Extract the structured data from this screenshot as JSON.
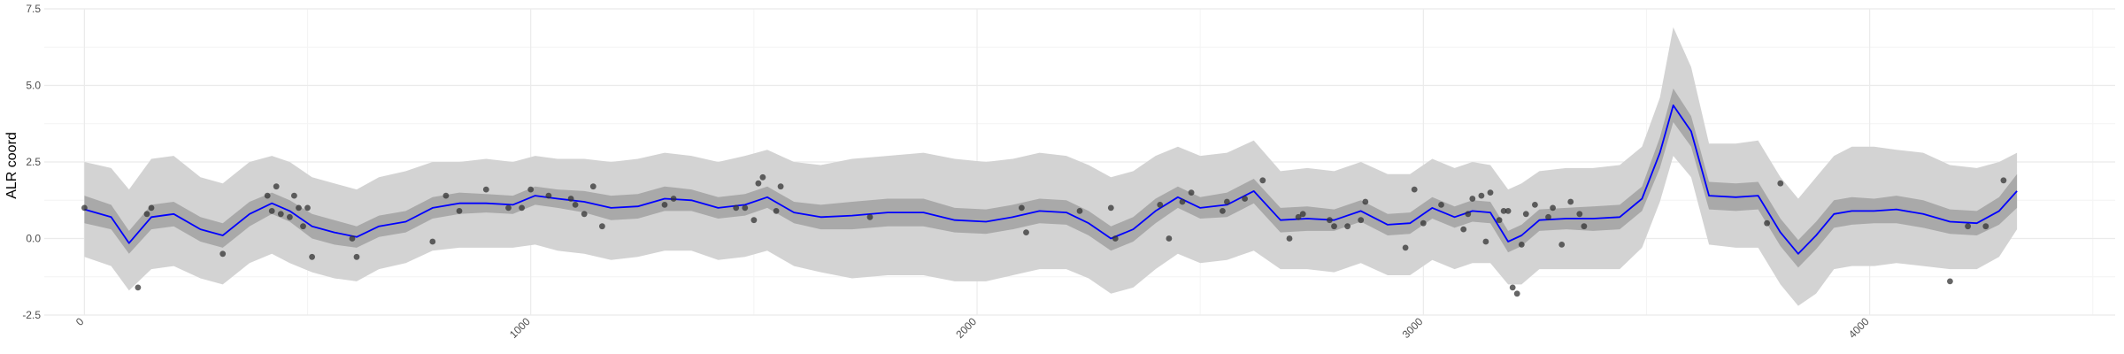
{
  "chart_data": {
    "type": "line",
    "title": "",
    "xlabel": "",
    "ylabel": "ALR coord",
    "xlim": [
      -90,
      4550
    ],
    "ylim": [
      -2.5,
      7.5
    ],
    "x_ticks": [
      0,
      1000,
      2000,
      3000,
      4000
    ],
    "x_tick_labels": [
      "0",
      "1000",
      "2000",
      "3000",
      "4000"
    ],
    "y_ticks": [
      -2.5,
      0,
      2.5,
      5,
      7.5
    ],
    "y_tick_labels": [
      "-2.5",
      "0.0",
      "2.5",
      "5.0",
      "7.5"
    ],
    "grid": true,
    "colors": {
      "line": "#0000ff",
      "inner_band": "#a9a9a9",
      "outer_band": "#d3d3d3",
      "points": "#333333",
      "grid_major": "#ebebeb",
      "grid_minor": "#f4f4f4"
    },
    "mean_line": {
      "x": [
        0,
        60,
        100,
        150,
        200,
        260,
        310,
        370,
        420,
        460,
        510,
        560,
        610,
        660,
        720,
        780,
        840,
        900,
        960,
        1010,
        1060,
        1120,
        1180,
        1240,
        1300,
        1360,
        1420,
        1480,
        1530,
        1590,
        1650,
        1720,
        1800,
        1880,
        1950,
        2020,
        2080,
        2140,
        2200,
        2250,
        2300,
        2350,
        2400,
        2450,
        2500,
        2560,
        2620,
        2680,
        2740,
        2800,
        2860,
        2920,
        2970,
        3020,
        3070,
        3110,
        3150,
        3190,
        3220,
        3260,
        3320,
        3380,
        3440,
        3490,
        3530,
        3560,
        3600,
        3640,
        3700,
        3750,
        3800,
        3840,
        3880,
        3920,
        3960,
        4010,
        4060,
        4120,
        4180,
        4240,
        4290,
        4330
      ],
      "y": [
        0.95,
        0.7,
        -0.15,
        0.7,
        0.8,
        0.3,
        0.1,
        0.8,
        1.15,
        0.9,
        0.4,
        0.2,
        0.05,
        0.4,
        0.55,
        1.0,
        1.15,
        1.15,
        1.1,
        1.4,
        1.3,
        1.2,
        1.0,
        1.05,
        1.3,
        1.25,
        1.0,
        1.1,
        1.35,
        0.85,
        0.7,
        0.75,
        0.85,
        0.85,
        0.6,
        0.55,
        0.7,
        0.9,
        0.85,
        0.5,
        0.0,
        0.3,
        0.9,
        1.35,
        1.0,
        1.1,
        1.55,
        0.6,
        0.65,
        0.6,
        0.9,
        0.45,
        0.5,
        1.0,
        0.7,
        0.9,
        0.85,
        -0.1,
        0.1,
        0.6,
        0.65,
        0.65,
        0.7,
        1.3,
        2.8,
        4.35,
        3.5,
        1.4,
        1.35,
        1.4,
        0.2,
        -0.5,
        0.1,
        0.8,
        0.9,
        0.9,
        0.95,
        0.8,
        0.55,
        0.5,
        0.9,
        1.55
      ]
    },
    "inner_band": {
      "x": [
        0,
        60,
        100,
        150,
        200,
        260,
        310,
        370,
        420,
        460,
        510,
        560,
        610,
        660,
        720,
        780,
        840,
        900,
        960,
        1010,
        1060,
        1120,
        1180,
        1240,
        1300,
        1360,
        1420,
        1480,
        1530,
        1590,
        1650,
        1720,
        1800,
        1880,
        1950,
        2020,
        2080,
        2140,
        2200,
        2250,
        2300,
        2350,
        2400,
        2450,
        2500,
        2560,
        2620,
        2680,
        2740,
        2800,
        2860,
        2920,
        2970,
        3020,
        3070,
        3110,
        3150,
        3190,
        3220,
        3260,
        3320,
        3380,
        3440,
        3490,
        3530,
        3560,
        3600,
        3640,
        3700,
        3750,
        3800,
        3840,
        3880,
        3920,
        3960,
        4010,
        4060,
        4120,
        4180,
        4240,
        4290,
        4330
      ],
      "lower": [
        0.5,
        0.3,
        -0.5,
        0.3,
        0.4,
        -0.1,
        -0.3,
        0.4,
        0.8,
        0.55,
        0.0,
        -0.2,
        -0.3,
        0.05,
        0.2,
        0.65,
        0.8,
        0.85,
        0.8,
        1.1,
        1.0,
        0.85,
        0.6,
        0.65,
        0.9,
        0.9,
        0.65,
        0.75,
        1.0,
        0.5,
        0.3,
        0.3,
        0.4,
        0.4,
        0.2,
        0.15,
        0.3,
        0.5,
        0.45,
        0.1,
        -0.4,
        -0.1,
        0.5,
        1.0,
        0.65,
        0.7,
        1.15,
        0.2,
        0.25,
        0.25,
        0.55,
        0.1,
        0.15,
        0.65,
        0.35,
        0.55,
        0.5,
        -0.45,
        -0.25,
        0.25,
        0.3,
        0.25,
        0.3,
        0.9,
        2.3,
        3.8,
        3.0,
        0.95,
        0.9,
        0.95,
        -0.25,
        -0.95,
        -0.35,
        0.35,
        0.45,
        0.5,
        0.5,
        0.35,
        0.15,
        0.1,
        0.45,
        1.0
      ],
      "upper": [
        1.4,
        1.1,
        0.25,
        1.1,
        1.2,
        0.7,
        0.5,
        1.2,
        1.5,
        1.25,
        0.8,
        0.6,
        0.4,
        0.75,
        0.9,
        1.35,
        1.5,
        1.45,
        1.4,
        1.7,
        1.6,
        1.55,
        1.4,
        1.45,
        1.7,
        1.6,
        1.35,
        1.45,
        1.7,
        1.2,
        1.1,
        1.2,
        1.3,
        1.3,
        1.0,
        0.95,
        1.1,
        1.3,
        1.25,
        0.9,
        0.4,
        0.7,
        1.3,
        1.7,
        1.35,
        1.5,
        1.95,
        1.0,
        1.05,
        0.95,
        1.25,
        0.8,
        0.85,
        1.35,
        1.05,
        1.25,
        1.2,
        0.25,
        0.45,
        0.95,
        1.0,
        1.05,
        1.1,
        1.7,
        3.3,
        4.9,
        4.0,
        1.85,
        1.8,
        1.85,
        0.65,
        -0.05,
        0.55,
        1.25,
        1.35,
        1.3,
        1.4,
        1.25,
        0.95,
        0.9,
        1.35,
        2.1
      ]
    },
    "outer_band": {
      "x": [
        0,
        60,
        100,
        150,
        200,
        260,
        310,
        370,
        420,
        460,
        510,
        560,
        610,
        660,
        720,
        780,
        840,
        900,
        960,
        1010,
        1060,
        1120,
        1180,
        1240,
        1300,
        1360,
        1420,
        1480,
        1530,
        1590,
        1650,
        1720,
        1800,
        1880,
        1950,
        2020,
        2080,
        2140,
        2200,
        2250,
        2300,
        2350,
        2400,
        2450,
        2500,
        2560,
        2620,
        2680,
        2740,
        2800,
        2860,
        2920,
        2970,
        3020,
        3070,
        3110,
        3150,
        3190,
        3220,
        3260,
        3320,
        3380,
        3440,
        3490,
        3530,
        3560,
        3600,
        3640,
        3700,
        3750,
        3800,
        3840,
        3880,
        3920,
        3960,
        4010,
        4060,
        4120,
        4180,
        4240,
        4290,
        4330
      ],
      "lower": [
        -0.6,
        -0.9,
        -1.7,
        -1.0,
        -0.9,
        -1.3,
        -1.5,
        -0.8,
        -0.5,
        -0.8,
        -1.1,
        -1.3,
        -1.4,
        -1.0,
        -0.8,
        -0.4,
        -0.3,
        -0.3,
        -0.3,
        -0.2,
        -0.4,
        -0.5,
        -0.7,
        -0.6,
        -0.4,
        -0.4,
        -0.7,
        -0.6,
        -0.4,
        -0.9,
        -1.1,
        -1.3,
        -1.2,
        -1.2,
        -1.4,
        -1.4,
        -1.2,
        -1.0,
        -1.0,
        -1.3,
        -1.8,
        -1.6,
        -1.0,
        -0.5,
        -0.8,
        -0.7,
        -0.4,
        -1.0,
        -1.0,
        -1.1,
        -0.8,
        -1.2,
        -1.2,
        -0.7,
        -1.0,
        -0.8,
        -0.8,
        -1.5,
        -1.5,
        -1.0,
        -1.0,
        -1.0,
        -1.0,
        -0.3,
        1.2,
        2.7,
        2.0,
        -0.2,
        -0.3,
        -0.3,
        -1.5,
        -2.2,
        -1.8,
        -1.0,
        -0.9,
        -0.9,
        -0.8,
        -0.9,
        -1.0,
        -1.0,
        -0.6,
        0.3
      ],
      "upper": [
        2.5,
        2.3,
        1.6,
        2.6,
        2.7,
        2.0,
        1.8,
        2.5,
        2.7,
        2.5,
        2.0,
        1.8,
        1.6,
        2.0,
        2.2,
        2.5,
        2.5,
        2.6,
        2.5,
        2.7,
        2.6,
        2.6,
        2.5,
        2.6,
        2.8,
        2.7,
        2.5,
        2.7,
        2.9,
        2.5,
        2.4,
        2.6,
        2.7,
        2.8,
        2.6,
        2.5,
        2.6,
        2.8,
        2.7,
        2.4,
        2.0,
        2.2,
        2.7,
        3.0,
        2.7,
        2.8,
        3.2,
        2.2,
        2.3,
        2.2,
        2.5,
        2.1,
        2.1,
        2.6,
        2.3,
        2.5,
        2.4,
        1.6,
        1.8,
        2.2,
        2.3,
        2.3,
        2.4,
        3.0,
        4.6,
        6.9,
        5.6,
        3.1,
        3.1,
        3.2,
        2.0,
        1.3,
        2.0,
        2.7,
        3.0,
        3.0,
        2.9,
        2.8,
        2.4,
        2.3,
        2.5,
        2.8
      ]
    },
    "points": {
      "x": [
        0,
        120,
        140,
        150,
        310,
        410,
        420,
        430,
        440,
        460,
        470,
        480,
        490,
        500,
        510,
        600,
        610,
        780,
        810,
        840,
        900,
        950,
        980,
        1000,
        1040,
        1090,
        1100,
        1120,
        1140,
        1160,
        1300,
        1320,
        1460,
        1480,
        1500,
        1510,
        1520,
        1550,
        1560,
        1760,
        2100,
        2110,
        2230,
        2300,
        2310,
        2410,
        2430,
        2460,
        2480,
        2550,
        2560,
        2600,
        2640,
        2700,
        2720,
        2730,
        2790,
        2800,
        2830,
        2860,
        2870,
        2960,
        2980,
        3000,
        3040,
        3090,
        3100,
        3110,
        3130,
        3140,
        3150,
        3170,
        3180,
        3190,
        3200,
        3210,
        3220,
        3230,
        3250,
        3280,
        3290,
        3310,
        3330,
        3350,
        3360,
        3770,
        3800,
        4180,
        4220,
        4260,
        4300
      ],
      "y": [
        1.0,
        -1.6,
        0.8,
        1.0,
        -0.5,
        1.4,
        0.9,
        1.7,
        0.8,
        0.7,
        1.4,
        1.0,
        0.4,
        1.0,
        -0.6,
        0.0,
        -0.6,
        -0.1,
        1.4,
        0.9,
        1.6,
        1.0,
        1.0,
        1.6,
        1.4,
        1.3,
        1.1,
        0.8,
        1.7,
        0.4,
        1.1,
        1.3,
        1.0,
        1.0,
        0.6,
        1.8,
        2.0,
        0.9,
        1.7,
        0.7,
        1.0,
        0.2,
        0.9,
        1.0,
        0.0,
        1.1,
        0.0,
        1.2,
        1.5,
        0.9,
        1.2,
        1.3,
        1.9,
        0.0,
        0.7,
        0.8,
        0.6,
        0.4,
        0.4,
        0.6,
        1.2,
        -0.3,
        1.6,
        0.5,
        1.1,
        0.3,
        0.8,
        1.3,
        1.4,
        -0.1,
        1.5,
        0.6,
        0.9,
        0.9,
        -1.6,
        -1.8,
        -0.2,
        0.8,
        1.1,
        0.7,
        1.0,
        -0.2,
        1.2,
        0.8,
        0.4,
        0.5,
        1.8,
        -1.4,
        0.4,
        0.4,
        1.9
      ]
    }
  }
}
